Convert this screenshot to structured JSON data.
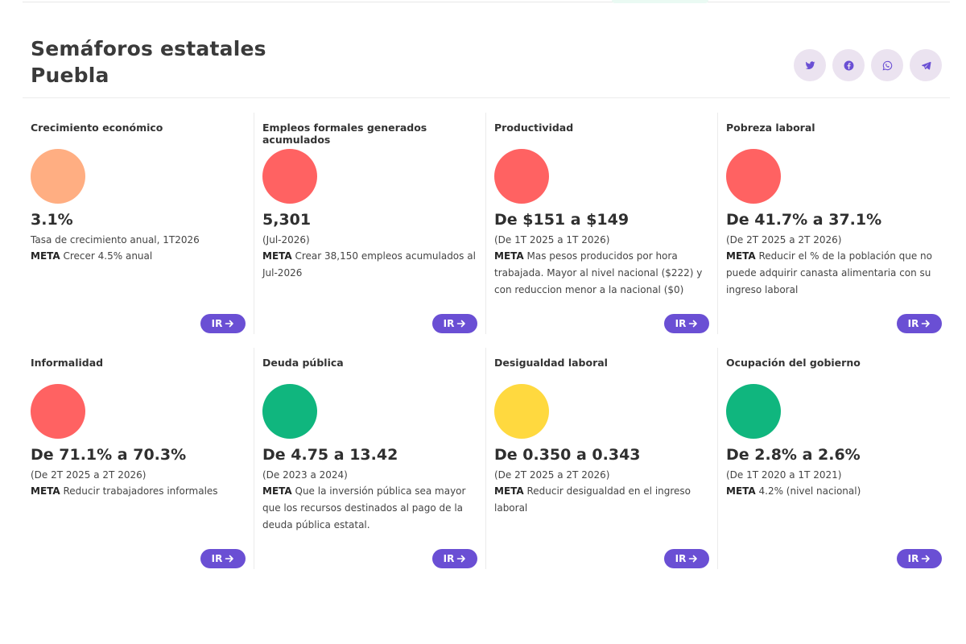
{
  "header": {
    "title_line1": "Semáforos estatales",
    "title_line2": "Puebla"
  },
  "share_icons": [
    "twitter-icon",
    "facebook-icon",
    "whatsapp-icon",
    "telegram-icon"
  ],
  "colors": {
    "orange": "#ffae82",
    "red": "#ff6262",
    "green": "#10b67e",
    "yellow": "#ffd93f",
    "accent": "#6a4fd4",
    "share_bg": "#ebe3f0"
  },
  "cards": [
    {
      "title": "Crecimiento económico",
      "status_color": "#ffae82",
      "value": "3.1%",
      "period": "Tasa de crecimiento anual, 1T2026",
      "meta_label": "META",
      "meta_text": " Crecer 4.5% anual",
      "button_label": "IR"
    },
    {
      "title": "Empleos formales generados acumulados",
      "status_color": "#ff6262",
      "value": "5,301",
      "period": "(Jul-2026)",
      "meta_label": "META",
      "meta_text": " Crear 38,150 empleos acumulados al Jul-2026",
      "button_label": "IR"
    },
    {
      "title": "Productividad",
      "status_color": "#ff6262",
      "value": "De $151 a $149",
      "period": "(De 1T 2025 a 1T 2026)",
      "meta_label": "META",
      "meta_text": " Mas pesos producidos por hora trabajada. Mayor al nivel nacional ($222) y con reduccion menor a la nacional ($0)",
      "button_label": "IR"
    },
    {
      "title": "Pobreza laboral",
      "status_color": "#ff6262",
      "value": "De 41.7% a 37.1%",
      "period": "(De 2T 2025 a 2T 2026)",
      "meta_label": "META",
      "meta_text": " Reducir el % de la población que no puede adquirir canasta alimentaria con su ingreso laboral",
      "button_label": "IR"
    },
    {
      "title": "Informalidad",
      "status_color": "#ff6262",
      "value": "De 71.1% a 70.3%",
      "period": "(De 2T 2025 a 2T 2026)",
      "meta_label": "META",
      "meta_text": " Reducir trabajadores informales",
      "button_label": "IR"
    },
    {
      "title": "Deuda pública",
      "status_color": "#10b67e",
      "value": "De 4.75 a 13.42",
      "period": "(De 2023 a 2024)",
      "meta_label": "META",
      "meta_text": " Que la inversión pública sea mayor que los recursos destinados al pago de la deuda pública estatal.",
      "button_label": "IR"
    },
    {
      "title": "Desigualdad laboral",
      "status_color": "#ffd93f",
      "value": "De 0.350 a 0.343",
      "period": "(De 2T 2025 a 2T 2026)",
      "meta_label": "META",
      "meta_text": " Reducir desigualdad en el ingreso laboral",
      "button_label": "IR"
    },
    {
      "title": "Ocupación del gobierno",
      "status_color": "#10b67e",
      "value": "De 2.8% a 2.6%",
      "period": "(De 1T 2020 a 1T 2021)",
      "meta_label": "META",
      "meta_text": " 4.2% (nivel nacional)",
      "button_label": "IR"
    }
  ]
}
